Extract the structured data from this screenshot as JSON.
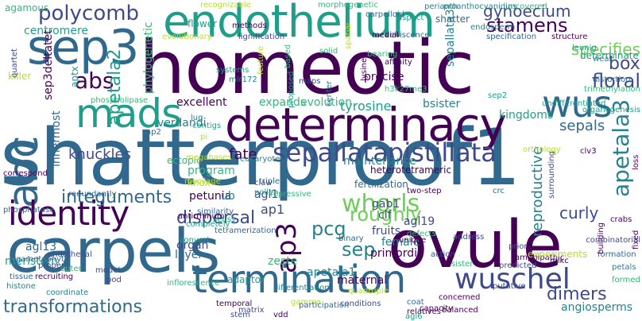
{
  "palette": {
    "purple": "#440154",
    "indigo": "#3e4a89",
    "blue": "#31688e",
    "teal": "#26828e",
    "green": "#1f9e89",
    "lime": "#35b779",
    "yellowgreen": "#6ece58",
    "yellow": "#b5de2b"
  },
  "words": [
    "homeotic",
    "shatterproof1",
    "carpels",
    "ovule",
    "determinacy",
    "endothelium",
    "sep3",
    "mads",
    "wus",
    "abc",
    "identity",
    "termination",
    "wuschel",
    "sepallata",
    "pistillata",
    "stamens",
    "whorls",
    "polycomb",
    "knuckles",
    "integuments",
    "pcg",
    "sep",
    "dimers",
    "apetala3",
    "floral",
    "reproductive",
    "abs",
    "gynoecium",
    "box",
    "sepals",
    "roughly",
    "curly",
    "ap3",
    "ap1",
    "transformations",
    "dispersal",
    "specifies",
    "centromere",
    "agamous",
    "female",
    "fate",
    "heterotetrameric",
    "fertilization",
    "tyrosine",
    "evolution",
    "excellent",
    "expands",
    "apetala2",
    "apetala1",
    "adaptor",
    "layer",
    "organ",
    "agl13",
    "meristem",
    "sep3deltatet",
    "innermost",
    "maintenance",
    "primordia",
    "maternal",
    "angiosperms",
    "kingdoms",
    "determinate",
    "shatter",
    "sepallata3",
    "precise",
    "bsister",
    "zeste",
    "fruits",
    "gab1",
    "clf",
    "agl19",
    "endosperm",
    "mir172",
    "systems",
    "verdandi",
    "program",
    "flower",
    "phylogenetic",
    "killer",
    "aptx",
    "knox",
    "petunia",
    "ub",
    "agl1",
    "pollen",
    "two-step",
    "crc",
    "ectopic",
    "megabases",
    "eukaryotes",
    "contigs",
    "lug",
    "methods",
    "perianth",
    "aspect",
    "uncovered",
    "carpelloid",
    "recognizable",
    "morphogenetic",
    "proanthocyanidins",
    "lignification",
    "dehiscence",
    "medial",
    "solid",
    "spatial",
    "lysine",
    "affinity",
    "bearing",
    "specification",
    "structure",
    "leunig",
    "weak",
    "distortion",
    "trimethylation",
    "organogenesis",
    "undifferentiated",
    "surrounding",
    "building",
    "loss",
    "fixed",
    "petals",
    "formed",
    "combinatorial",
    "formation",
    "putative",
    "predicted",
    "sister",
    "prior",
    "amphipathic",
    "defects",
    "action",
    "unique",
    "binary",
    "repressive",
    "triple",
    "claw",
    "mucilage",
    "similarity",
    "seuss",
    "completely",
    "antirrhinum",
    "tetramerization",
    "convert",
    "proper",
    "outer",
    "tissue",
    "recruiting",
    "endothelial",
    "histone",
    "pod",
    "model",
    "coordinate",
    "inflorescence",
    "differentiation",
    "quadruple",
    "conditions",
    "coat",
    "concerned",
    "relatives",
    "vdd",
    "gamma",
    "agl6",
    "balanced",
    "temporal",
    "stem",
    "matrix",
    "participation",
    "capacity",
    "gametophyte",
    "redundantly",
    "correspond",
    "phosphatase",
    "phospholipase",
    "evolutionary",
    "feature",
    "based",
    "maps",
    "proposed",
    "center",
    "h3k27me3",
    "ap2",
    "pi",
    "sep2",
    "orthology",
    "clv3",
    "experiments",
    "address",
    "mikc",
    "crabs",
    "quartet"
  ]
}
